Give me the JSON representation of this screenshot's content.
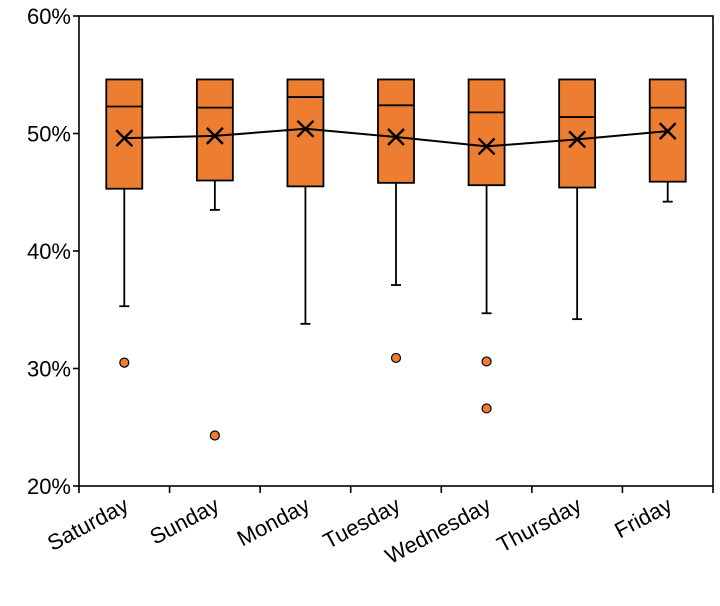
{
  "chart_data": {
    "type": "box",
    "categories": [
      "Saturday",
      "Sunday",
      "Monday",
      "Tuesday",
      "Wednesday",
      "Thursday",
      "Friday"
    ],
    "y_ticks": [
      "20%",
      "30%",
      "40%",
      "50%",
      "60%"
    ],
    "y_tick_values": [
      20,
      30,
      40,
      50,
      60
    ],
    "ylim": [
      20,
      60
    ],
    "grid": false,
    "legend": "none",
    "colors": {
      "box_fill": "#ED7D31",
      "outline": "#000000",
      "line": "#000000"
    },
    "boxes": [
      {
        "category": "Saturday",
        "min": 35.3,
        "q1": 45.3,
        "median": 52.3,
        "q3": 54.6,
        "max": 54.6,
        "mean": 49.6,
        "outliers": [
          30.5
        ]
      },
      {
        "category": "Sunday",
        "min": 43.5,
        "q1": 46.0,
        "median": 52.2,
        "q3": 54.6,
        "max": 54.6,
        "mean": 49.8,
        "outliers": [
          24.3
        ]
      },
      {
        "category": "Monday",
        "min": 33.8,
        "q1": 45.5,
        "median": 53.1,
        "q3": 54.6,
        "max": 54.6,
        "mean": 50.4,
        "outliers": []
      },
      {
        "category": "Tuesday",
        "min": 37.1,
        "q1": 45.8,
        "median": 52.4,
        "q3": 54.6,
        "max": 54.6,
        "mean": 49.7,
        "outliers": [
          30.9
        ]
      },
      {
        "category": "Wednesday",
        "min": 34.7,
        "q1": 45.6,
        "median": 51.8,
        "q3": 54.6,
        "max": 54.6,
        "mean": 48.9,
        "outliers": [
          30.6,
          26.6
        ]
      },
      {
        "category": "Thursday",
        "min": 34.2,
        "q1": 45.4,
        "median": 51.4,
        "q3": 54.6,
        "max": 54.6,
        "mean": 49.5,
        "outliers": []
      },
      {
        "category": "Friday",
        "min": 44.2,
        "q1": 45.9,
        "median": 52.2,
        "q3": 54.6,
        "max": 54.6,
        "mean": 50.2,
        "outliers": []
      }
    ]
  }
}
